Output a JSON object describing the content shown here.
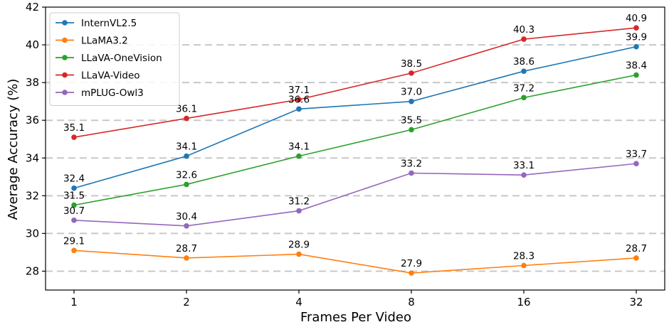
{
  "chart_data": {
    "type": "line",
    "xlabel": "Frames Per Video",
    "ylabel": "Average Accuracy (%)",
    "categories": [
      "1",
      "2",
      "4",
      "8",
      "16",
      "32"
    ],
    "ylim": [
      27,
      42
    ],
    "yticks": [
      28,
      30,
      32,
      34,
      36,
      38,
      40,
      42
    ],
    "grid": "horizontal dashed",
    "legend_position": "top-left",
    "series": [
      {
        "name": "InternVL2.5",
        "color": "#1f77b4",
        "values": [
          32.4,
          34.1,
          36.6,
          37.0,
          38.6,
          39.9
        ],
        "labels": [
          "32.4",
          "34.1",
          "36.6",
          "37.0",
          "38.6",
          "39.9"
        ]
      },
      {
        "name": "LLaMA3.2",
        "color": "#ff7f0e",
        "values": [
          29.1,
          28.7,
          28.9,
          27.9,
          28.3,
          28.7
        ],
        "labels": [
          "29.1",
          "28.7",
          "28.9",
          "27.9",
          "28.3",
          "28.7"
        ]
      },
      {
        "name": "LLaVA-OneVision",
        "color": "#2ca02c",
        "values": [
          31.5,
          32.6,
          34.1,
          35.5,
          37.2,
          38.4
        ],
        "labels": [
          "31.5",
          "32.6",
          "34.1",
          "35.5",
          "37.2",
          "38.4"
        ]
      },
      {
        "name": "LLaVA-Video",
        "color": "#d62728",
        "values": [
          35.1,
          36.1,
          37.1,
          38.5,
          40.3,
          40.9
        ],
        "labels": [
          "35.1",
          "36.1",
          "37.1",
          "38.5",
          "40.3",
          "40.9"
        ]
      },
      {
        "name": "mPLUG-Owl3",
        "color": "#9467bd",
        "values": [
          30.7,
          30.4,
          31.2,
          33.2,
          33.1,
          33.7
        ],
        "labels": [
          "30.7",
          "30.4",
          "31.2",
          "33.2",
          "33.1",
          "33.7"
        ]
      }
    ]
  }
}
